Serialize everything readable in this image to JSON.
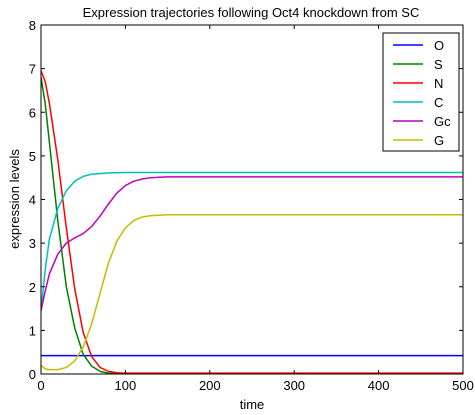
{
  "chart_data": {
    "type": "line",
    "title": "Expression trajectories following Oct4 knockdown from SC",
    "xlabel": "time",
    "ylabel": "expression levels",
    "xlim": [
      0,
      500
    ],
    "ylim": [
      0,
      8
    ],
    "xticks": [
      0,
      100,
      200,
      300,
      400,
      500
    ],
    "yticks": [
      0,
      1,
      2,
      3,
      4,
      5,
      6,
      7,
      8
    ],
    "grid": false,
    "legend_position": "top-right",
    "series": [
      {
        "name": "O",
        "color": "#0000ff",
        "x": [
          0,
          500
        ],
        "y": [
          0.42,
          0.42
        ]
      },
      {
        "name": "S",
        "color": "#008000",
        "x": [
          0,
          5,
          10,
          20,
          30,
          40,
          50,
          60,
          70,
          80,
          100,
          150,
          500
        ],
        "y": [
          6.8,
          6.2,
          5.3,
          3.5,
          2.0,
          1.05,
          0.45,
          0.18,
          0.06,
          0.02,
          0.01,
          0.01,
          0.01
        ]
      },
      {
        "name": "N",
        "color": "#ff0000",
        "x": [
          0,
          5,
          10,
          20,
          30,
          40,
          50,
          60,
          70,
          80,
          90,
          100,
          150,
          500
        ],
        "y": [
          6.95,
          6.7,
          6.2,
          4.9,
          3.35,
          1.95,
          0.95,
          0.4,
          0.15,
          0.06,
          0.03,
          0.02,
          0.02,
          0.02
        ]
      },
      {
        "name": "C",
        "color": "#00bfbf",
        "x": [
          0,
          5,
          10,
          20,
          30,
          40,
          50,
          60,
          80,
          100,
          150,
          500
        ],
        "y": [
          1.45,
          2.4,
          3.1,
          3.8,
          4.2,
          4.42,
          4.53,
          4.58,
          4.61,
          4.62,
          4.62,
          4.62
        ]
      },
      {
        "name": "Gc",
        "color": "#bf00bf",
        "x": [
          0,
          5,
          10,
          20,
          30,
          40,
          50,
          60,
          70,
          80,
          90,
          100,
          110,
          120,
          130,
          140,
          150,
          175,
          200,
          500
        ],
        "y": [
          1.45,
          1.9,
          2.3,
          2.75,
          3.0,
          3.12,
          3.22,
          3.38,
          3.62,
          3.9,
          4.15,
          4.32,
          4.42,
          4.47,
          4.5,
          4.51,
          4.52,
          4.52,
          4.52,
          4.52
        ]
      },
      {
        "name": "G",
        "color": "#bfbf00",
        "x": [
          0,
          5,
          10,
          20,
          30,
          40,
          50,
          60,
          70,
          80,
          90,
          100,
          110,
          120,
          130,
          140,
          150,
          175,
          200,
          500
        ],
        "y": [
          0.2,
          0.12,
          0.1,
          0.1,
          0.15,
          0.3,
          0.62,
          1.15,
          1.85,
          2.55,
          3.05,
          3.35,
          3.52,
          3.6,
          3.63,
          3.64,
          3.65,
          3.65,
          3.65,
          3.65
        ]
      }
    ]
  }
}
